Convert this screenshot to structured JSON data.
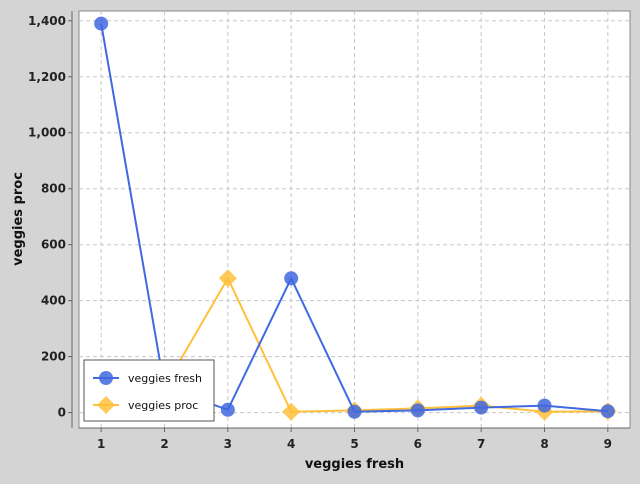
{
  "chart_data": {
    "type": "line",
    "title": "",
    "xlabel": "veggies fresh",
    "ylabel": "veggies proc",
    "x": [
      1,
      2,
      3,
      4,
      5,
      6,
      7,
      8,
      9
    ],
    "xticks": [
      "1",
      "2",
      "3",
      "4",
      "5",
      "6",
      "7",
      "8",
      "9"
    ],
    "yticks": [
      "0",
      "200",
      "400",
      "600",
      "800",
      "1,000",
      "1,200",
      "1,400"
    ],
    "xlim": [
      0.65,
      9.35
    ],
    "ylim": [
      -55,
      1435
    ],
    "grid": true,
    "legend_position": "bottom-left",
    "series": [
      {
        "name": "veggies fresh",
        "marker": "circle",
        "color": "#4169e1",
        "values": [
          1390,
          90,
          10,
          480,
          3,
          8,
          18,
          25,
          5
        ]
      },
      {
        "name": "veggies proc",
        "marker": "diamond",
        "color": "#ffc13b",
        "values": [
          5,
          90,
          480,
          3,
          8,
          15,
          25,
          3,
          5
        ]
      }
    ]
  }
}
